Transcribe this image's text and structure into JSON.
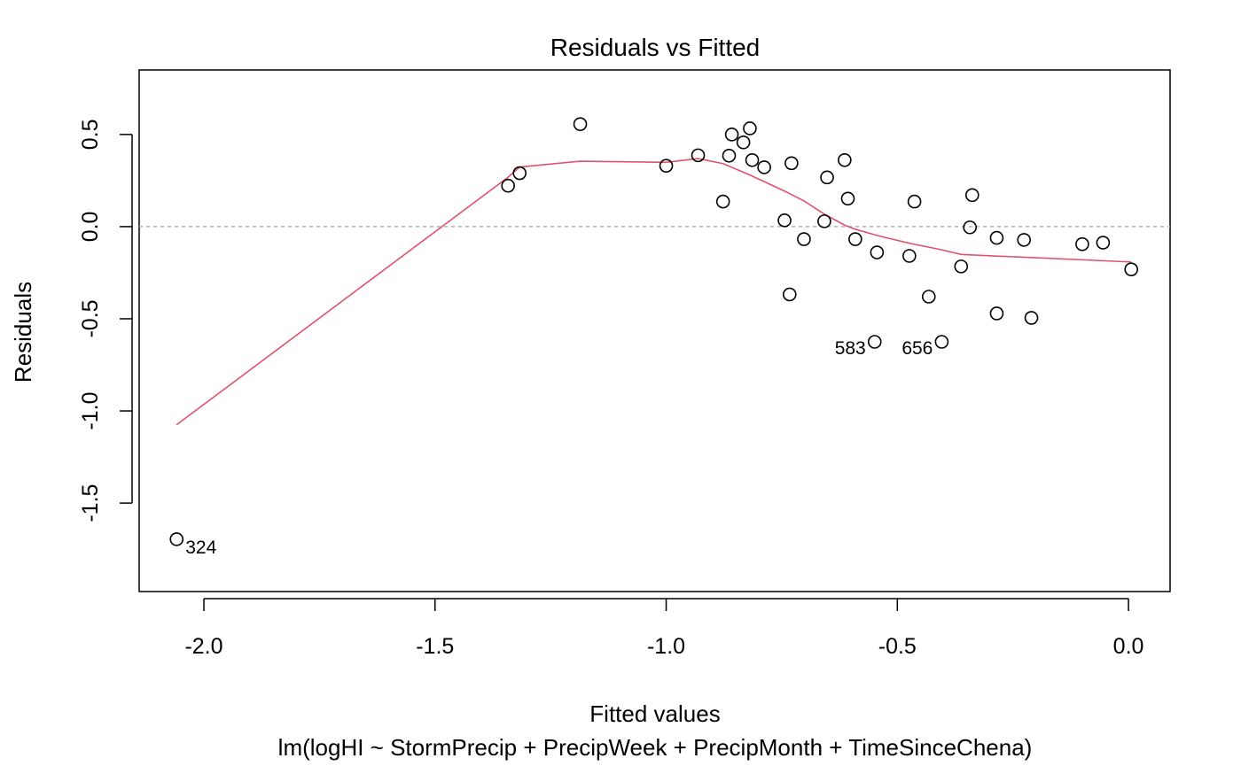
{
  "chart_data": {
    "type": "scatter",
    "title": "Residuals vs Fitted",
    "xlabel": "Fitted values",
    "subtitle": "lm(logHI ~ StormPrecip + PrecipWeek + PrecipMonth + TimeSinceChena)",
    "ylabel": "Residuals",
    "xlim": [
      -2.14,
      0.09
    ],
    "ylim": [
      -1.98,
      0.85
    ],
    "x_ticks": [
      {
        "value": -2.0,
        "label": "-2.0"
      },
      {
        "value": -1.5,
        "label": "-1.5"
      },
      {
        "value": -1.0,
        "label": "-1.0"
      },
      {
        "value": -0.5,
        "label": "-0.5"
      },
      {
        "value": 0.0,
        "label": "0.0"
      }
    ],
    "y_ticks": [
      {
        "value": -1.5,
        "label": "-1.5"
      },
      {
        "value": -1.0,
        "label": "-1.0"
      },
      {
        "value": -0.5,
        "label": "-0.5"
      },
      {
        "value": 0.0,
        "label": "0.0"
      },
      {
        "value": 0.5,
        "label": "0.5"
      }
    ],
    "reference_line_y": 0,
    "points": [
      {
        "x": -2.059,
        "y": -1.696,
        "label": "324"
      },
      {
        "x": -1.342,
        "y": 0.222
      },
      {
        "x": -1.317,
        "y": 0.29
      },
      {
        "x": -1.186,
        "y": 0.556
      },
      {
        "x": -1.0,
        "y": 0.33
      },
      {
        "x": -0.931,
        "y": 0.387
      },
      {
        "x": -0.877,
        "y": 0.136
      },
      {
        "x": -0.864,
        "y": 0.385
      },
      {
        "x": -0.858,
        "y": 0.5
      },
      {
        "x": -0.833,
        "y": 0.457
      },
      {
        "x": -0.819,
        "y": 0.533
      },
      {
        "x": -0.814,
        "y": 0.361
      },
      {
        "x": -0.788,
        "y": 0.322
      },
      {
        "x": -0.744,
        "y": 0.034
      },
      {
        "x": -0.733,
        "y": -0.368
      },
      {
        "x": -0.729,
        "y": 0.344
      },
      {
        "x": -0.702,
        "y": -0.068
      },
      {
        "x": -0.658,
        "y": 0.029
      },
      {
        "x": -0.652,
        "y": 0.267
      },
      {
        "x": -0.614,
        "y": 0.361
      },
      {
        "x": -0.607,
        "y": 0.152
      },
      {
        "x": -0.591,
        "y": -0.068
      },
      {
        "x": -0.549,
        "y": -0.625,
        "label": "583"
      },
      {
        "x": -0.544,
        "y": -0.14
      },
      {
        "x": -0.474,
        "y": -0.159
      },
      {
        "x": -0.463,
        "y": 0.136
      },
      {
        "x": -0.404,
        "y": -0.625,
        "label": "656"
      },
      {
        "x": -0.432,
        "y": -0.38
      },
      {
        "x": -0.362,
        "y": -0.216
      },
      {
        "x": -0.343,
        "y": -0.004
      },
      {
        "x": -0.338,
        "y": 0.171
      },
      {
        "x": -0.285,
        "y": -0.061
      },
      {
        "x": -0.285,
        "y": -0.471
      },
      {
        "x": -0.226,
        "y": -0.072
      },
      {
        "x": -0.21,
        "y": -0.495
      },
      {
        "x": -0.1,
        "y": -0.095
      },
      {
        "x": -0.055,
        "y": -0.087
      },
      {
        "x": 0.006,
        "y": -0.232
      }
    ],
    "smooth_line": {
      "color": "#DF536B",
      "x": [
        -2.059,
        -1.342,
        -1.317,
        -1.186,
        -1.0,
        -0.931,
        -0.877,
        -0.819,
        -0.744,
        -0.702,
        -0.658,
        -0.614,
        -0.591,
        -0.544,
        -0.474,
        -0.404,
        -0.362,
        -0.285,
        -0.226,
        -0.1,
        0.006
      ],
      "y": [
        -1.075,
        0.268,
        0.323,
        0.355,
        0.349,
        0.369,
        0.342,
        0.28,
        0.193,
        0.14,
        0.068,
        0.008,
        -0.014,
        -0.048,
        -0.09,
        -0.126,
        -0.151,
        -0.16,
        -0.166,
        -0.18,
        -0.192
      ]
    }
  }
}
